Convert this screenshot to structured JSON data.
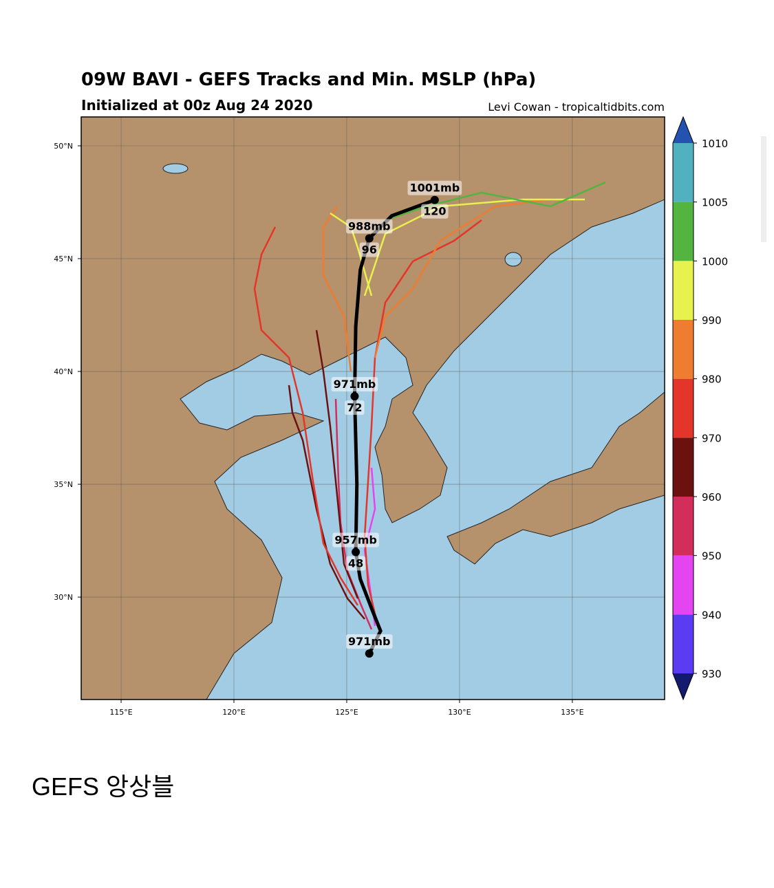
{
  "figure": {
    "title": "09W BAVI - GEFS Tracks and Min. MSLP (hPa)",
    "subtitle": "Initialized at 00z Aug 24 2020",
    "credit": "Levi Cowan - tropicaltidbits.com",
    "xlim": [
      113.23,
      139.09
    ],
    "ylim": [
      25.46,
      51.28
    ],
    "xticks": [
      {
        "value": 115,
        "label": "115°E"
      },
      {
        "value": 120,
        "label": "120°E"
      },
      {
        "value": 125,
        "label": "125°E"
      },
      {
        "value": 130,
        "label": "130°E"
      },
      {
        "value": 135,
        "label": "135°E"
      }
    ],
    "yticks": [
      {
        "value": 30,
        "label": "30°N"
      },
      {
        "value": 35,
        "label": "35°N"
      },
      {
        "value": 40,
        "label": "40°N"
      },
      {
        "value": 45,
        "label": "45°N"
      },
      {
        "value": 50,
        "label": "50°N"
      }
    ],
    "colorbar": {
      "ticks": [
        930,
        940,
        950,
        960,
        970,
        980,
        990,
        1000,
        1005,
        1010
      ],
      "colors": [
        "#5b3cf2",
        "#e545f0",
        "#d32d5c",
        "#6b1210",
        "#e4352a",
        "#ef7d30",
        "#e8f24e",
        "#53b43f",
        "#52b1bf"
      ],
      "end_colors": [
        "#141a6e",
        "#2452b0"
      ]
    },
    "mean_track": [
      {
        "lon": 126.0,
        "lat": 27.5,
        "pressure": "971mb"
      },
      {
        "lon": 126.5,
        "lat": 28.5
      },
      {
        "lon": 126.1,
        "lat": 29.5
      },
      {
        "lon": 125.6,
        "lat": 30.8
      },
      {
        "lon": 125.4,
        "lat": 32.0,
        "pressure": "957mb",
        "hour": 48
      },
      {
        "lon": 125.45,
        "lat": 35.0
      },
      {
        "lon": 125.35,
        "lat": 38.9,
        "pressure": "971mb",
        "hour": 72
      },
      {
        "lon": 125.4,
        "lat": 42.0
      },
      {
        "lon": 125.6,
        "lat": 44.5
      },
      {
        "lon": 126.0,
        "lat": 45.9,
        "pressure": "988mb",
        "hour": 96
      },
      {
        "lon": 127.0,
        "lat": 46.9
      },
      {
        "lon": 128.9,
        "lat": 47.6,
        "pressure": "1001mb",
        "hour": 120
      }
    ]
  },
  "caption": "GEFS 앙상블"
}
